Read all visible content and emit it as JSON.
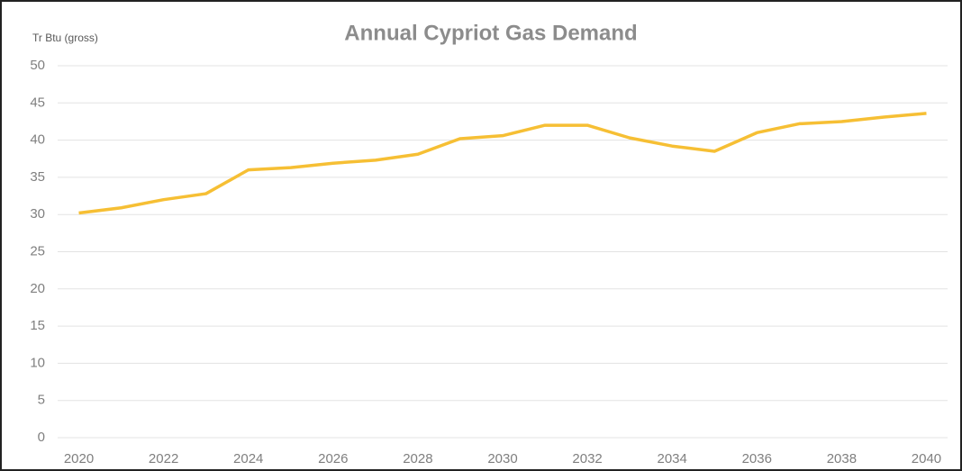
{
  "chart_data": {
    "type": "line",
    "title": "Annual Cypriot Gas Demand",
    "y_label": "Tr Btu (gross)",
    "x": [
      2020,
      2021,
      2022,
      2023,
      2024,
      2025,
      2026,
      2027,
      2028,
      2029,
      2030,
      2031,
      2032,
      2033,
      2034,
      2035,
      2036,
      2037,
      2038,
      2039,
      2040
    ],
    "series": [
      {
        "name": "Annual Cypriot Gas Demand",
        "color": "#f6bf34",
        "values": [
          30.2,
          30.9,
          32.0,
          32.8,
          36.0,
          36.3,
          36.9,
          37.3,
          38.1,
          40.2,
          40.6,
          42.0,
          42.0,
          40.3,
          39.2,
          38.5,
          41.0,
          42.2,
          42.5,
          43.1,
          43.6
        ]
      }
    ],
    "xlim": [
      2019.5,
      2040.5
    ],
    "xticks": [
      2020,
      2022,
      2024,
      2026,
      2028,
      2030,
      2032,
      2034,
      2036,
      2038,
      2040
    ],
    "ylim": [
      0,
      50
    ],
    "yticks": [
      0,
      5,
      10,
      15,
      20,
      25,
      30,
      35,
      40,
      45,
      50
    ],
    "grid": true
  }
}
